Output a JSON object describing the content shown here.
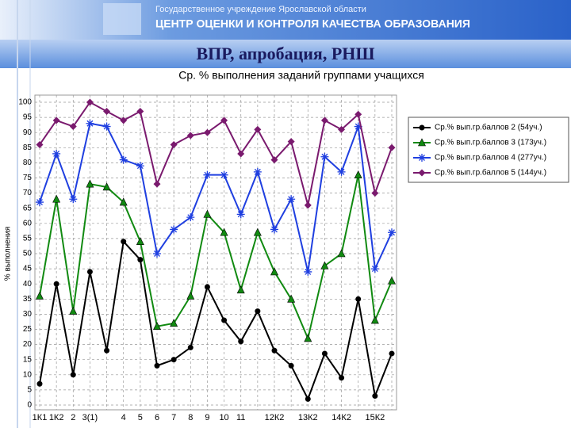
{
  "header": {
    "org": "Государственное учреждение Ярославской области",
    "center": "ЦЕНТР ОЦЕНКИ И КОНТРОЛЯ КАЧЕСТВА ОБРАЗОВАНИЯ"
  },
  "slide_title": "ВПР, апробация, РНШ",
  "chart_data": {
    "type": "line",
    "title": "Ср. % выполнения заданий группами учащихся",
    "y_label": "% выполнения",
    "categories": [
      "1К1",
      "1К2",
      "2",
      "3(1)",
      null,
      "4",
      "5",
      "6",
      "7",
      "8",
      "9",
      "10",
      "11",
      null,
      "12К2",
      null,
      "13К2",
      null,
      "14К2",
      null,
      "15К2",
      null
    ],
    "series": [
      {
        "name": "Ср.% вып.гр.баллов 2 (54уч.)",
        "color": "#000000",
        "marker": "circle",
        "values": [
          7,
          40,
          10,
          44,
          18,
          54,
          48,
          13,
          15,
          19,
          39,
          28,
          21,
          31,
          18,
          13,
          2,
          17,
          9,
          35,
          3,
          17
        ]
      },
      {
        "name": "Ср.% вып.гр.баллов 3 (173уч.)",
        "color": "#118a11",
        "marker": "triangle",
        "values": [
          36,
          68,
          31,
          73,
          72,
          67,
          54,
          26,
          27,
          36,
          63,
          57,
          38,
          57,
          44,
          35,
          22,
          46,
          50,
          76,
          28,
          41
        ]
      },
      {
        "name": "Ср.% вып.гр.баллов 4 (277уч.)",
        "color": "#1f3fe0",
        "marker": "star",
        "values": [
          67,
          83,
          68,
          93,
          92,
          81,
          79,
          50,
          58,
          62,
          76,
          76,
          63,
          77,
          58,
          68,
          44,
          82,
          77,
          92,
          45,
          57
        ]
      },
      {
        "name": "Ср.% вып.гр.баллов 5 (144уч.)",
        "color": "#7a1a6e",
        "marker": "diamond",
        "values": [
          86,
          94,
          92,
          100,
          97,
          94,
          97,
          73,
          86,
          89,
          90,
          94,
          83,
          91,
          81,
          87,
          66,
          94,
          91,
          96,
          70,
          85
        ]
      }
    ],
    "ylim": [
      0,
      100
    ],
    "yticks": [
      0,
      5,
      10,
      15,
      20,
      25,
      30,
      35,
      40,
      45,
      50,
      55,
      60,
      65,
      70,
      75,
      80,
      85,
      90,
      95,
      100
    ],
    "grid": true,
    "legend": "right"
  }
}
